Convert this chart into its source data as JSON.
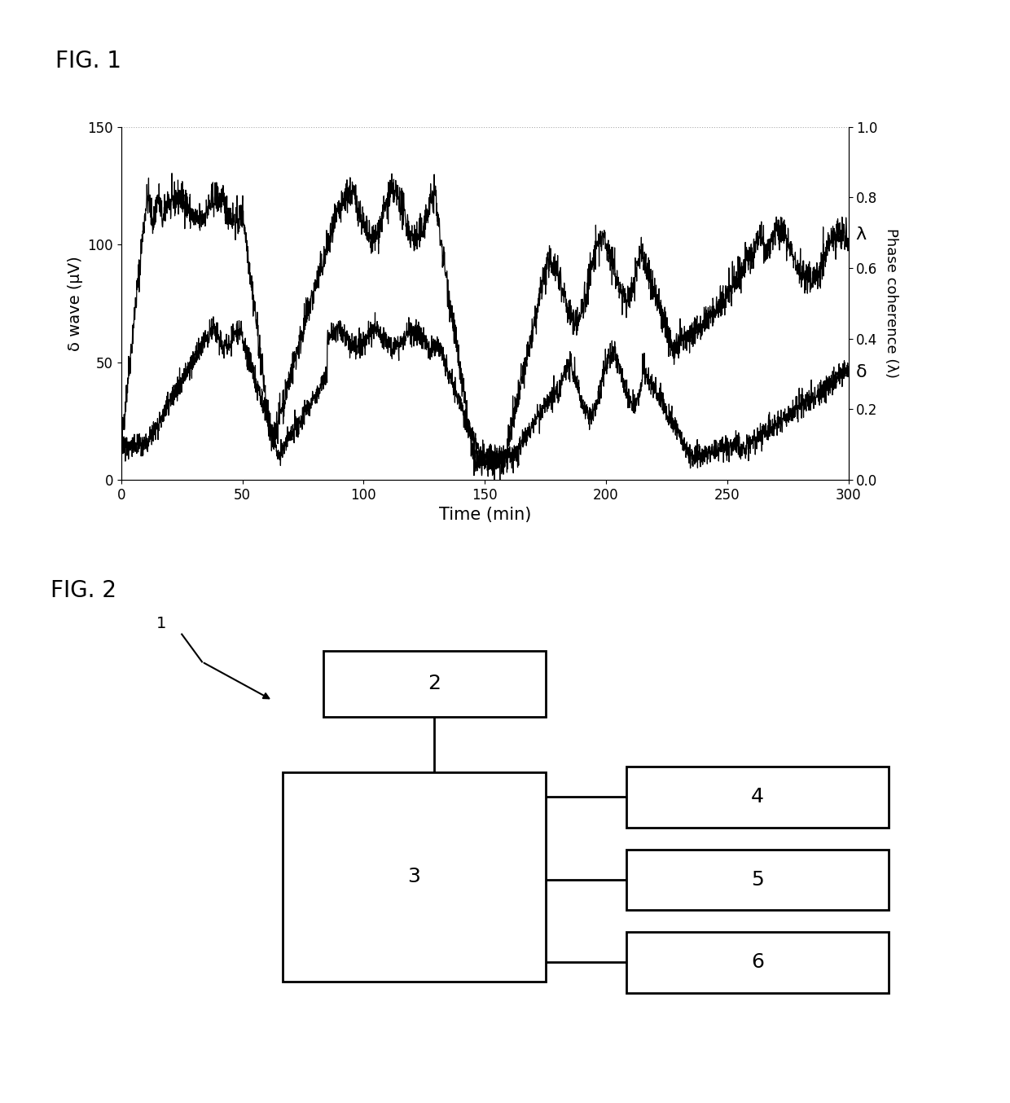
{
  "fig1_title": "FIG. 1",
  "fig2_title": "FIG. 2",
  "xlabel": "Time (min)",
  "ylabel_left": "δ wave (μV)",
  "ylabel_right": "Phase coherence (λ)",
  "xlim": [
    0,
    300
  ],
  "ylim_left": [
    0,
    150
  ],
  "ylim_right": [
    0,
    1
  ],
  "xticks": [
    0,
    50,
    100,
    150,
    200,
    250,
    300
  ],
  "yticks_left": [
    0,
    50,
    100,
    150
  ],
  "yticks_right": [
    0,
    0.2,
    0.4,
    0.6,
    0.8,
    1.0
  ],
  "label_lambda": "λ",
  "label_delta": "δ",
  "background_color": "#ffffff",
  "line_color": "#000000",
  "dashed_line_color": "#aaaaaa"
}
